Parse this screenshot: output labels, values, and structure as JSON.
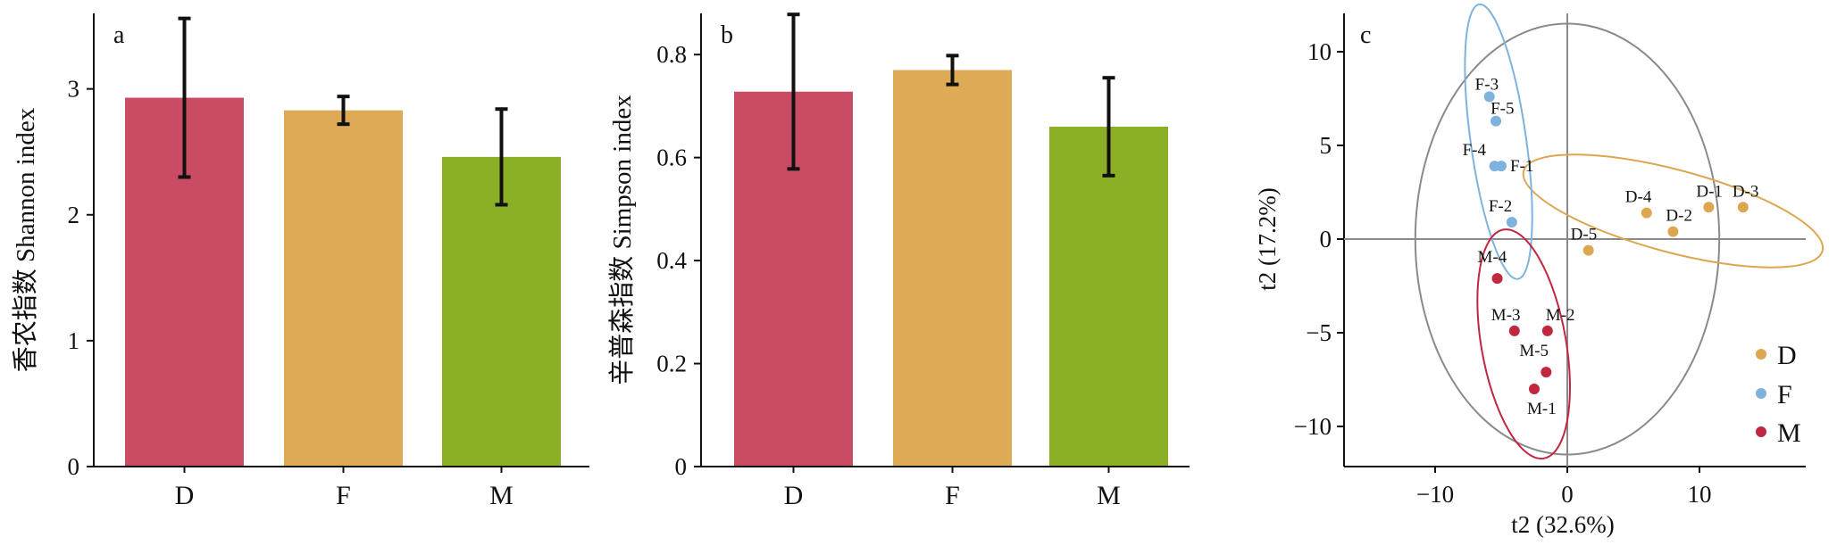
{
  "chart_data": [
    {
      "type": "bar",
      "panel_label": "a",
      "categories": [
        "D",
        "F",
        "M"
      ],
      "values": [
        2.93,
        2.83,
        2.46
      ],
      "errors": [
        0.63,
        0.11,
        0.38
      ],
      "colors": [
        "#c8465f",
        "#dda751",
        "#87ad1e"
      ],
      "ylabel": "香农指数 Shannon index",
      "xlabel": "",
      "ylim": [
        0,
        3.6
      ],
      "yticks": [
        0,
        1,
        2,
        3
      ]
    },
    {
      "type": "bar",
      "panel_label": "b",
      "categories": [
        "D",
        "F",
        "M"
      ],
      "values": [
        0.728,
        0.77,
        0.66
      ],
      "errors": [
        0.15,
        0.028,
        0.095
      ],
      "colors": [
        "#c8465f",
        "#dda751",
        "#87ad1e"
      ],
      "ylabel": "辛普森指数 Simpson index",
      "xlabel": "",
      "ylim": [
        0,
        0.88
      ],
      "yticks": [
        "0",
        "0.2",
        "0.4",
        "0.6",
        "0.8"
      ]
    },
    {
      "type": "scatter",
      "panel_label": "c",
      "xlabel": "t2 (32.6%)",
      "ylabel": "t2 (17.2%)",
      "xlim": [
        -17,
        17
      ],
      "ylim": [
        -12,
        12
      ],
      "xticks": [
        -10,
        0,
        10
      ],
      "yticks": [
        10,
        5,
        0,
        -5,
        -10
      ],
      "circle_radius": 11.5,
      "series": [
        {
          "name": "D",
          "color": "#dda751",
          "points": [
            {
              "label": "D-1",
              "x": 10.7,
              "y": 1.7
            },
            {
              "label": "D-2",
              "x": 8.0,
              "y": 0.4
            },
            {
              "label": "D-3",
              "x": 13.3,
              "y": 1.7
            },
            {
              "label": "D-4",
              "x": 6.0,
              "y": 1.4
            },
            {
              "label": "D-5",
              "x": 1.6,
              "y": -0.6
            }
          ],
          "ellipse": {
            "cx": 8.0,
            "cy": 1.5,
            "rx": 11.7,
            "ry": 2.2,
            "angle": 15
          }
        },
        {
          "name": "F",
          "color": "#7fb3de",
          "points": [
            {
              "label": "F-1",
              "x": -5.0,
              "y": 3.9
            },
            {
              "label": "F-2",
              "x": -4.2,
              "y": 0.9
            },
            {
              "label": "F-3",
              "x": -5.9,
              "y": 7.6
            },
            {
              "label": "F-4",
              "x": -5.5,
              "y": 3.9
            },
            {
              "label": "F-5",
              "x": -5.4,
              "y": 6.3
            }
          ],
          "ellipse": {
            "cx": -5.2,
            "cy": 5.2,
            "rx": 2.1,
            "ry": 7.4,
            "angle": -8
          }
        },
        {
          "name": "M",
          "color": "#c0283f",
          "points": [
            {
              "label": "M-1",
              "x": -2.5,
              "y": -8.0
            },
            {
              "label": "M-2",
              "x": -1.5,
              "y": -4.9
            },
            {
              "label": "M-3",
              "x": -4.0,
              "y": -4.9
            },
            {
              "label": "M-4",
              "x": -5.3,
              "y": -2.1
            },
            {
              "label": "M-5",
              "x": -1.6,
              "y": -7.1
            }
          ],
          "ellipse": {
            "cx": -3.3,
            "cy": -5.6,
            "rx": 3.2,
            "ry": 6.2,
            "angle": -10
          }
        }
      ],
      "legend": [
        "D",
        "F",
        "M"
      ],
      "legend_position": "bottom-right"
    }
  ]
}
